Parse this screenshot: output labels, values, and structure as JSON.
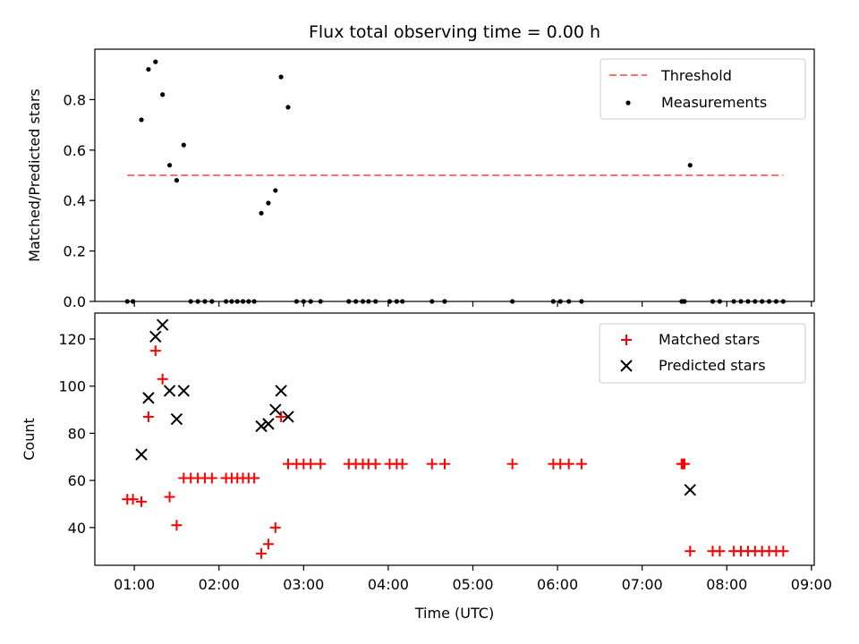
{
  "chart_data": [
    {
      "type": "scatter",
      "title": "Flux total observing time = 0.00 h",
      "xlabel": "",
      "ylabel": "Matched/Predicted stars",
      "xlim": [
        "00:32",
        "09:02"
      ],
      "ylim": [
        0,
        1.0
      ],
      "yticks": [
        0.0,
        0.2,
        0.4,
        0.6,
        0.8
      ],
      "ytick_labels": [
        "0.0",
        "0.2",
        "0.4",
        "0.6",
        "0.8"
      ],
      "grid": false,
      "legend_position": "top-right",
      "threshold": {
        "name": "Threshold",
        "value": 0.5,
        "x_start": "00:55",
        "x_end": "08:40",
        "color": "#ff7070"
      },
      "series": [
        {
          "name": "Measurements",
          "color": "#000000",
          "x": [
            "00:55",
            "00:59",
            "01:05",
            "01:10",
            "01:15",
            "01:20",
            "01:25",
            "01:30",
            "01:35",
            "01:40",
            "01:45",
            "01:50",
            "01:55",
            "02:05",
            "02:09",
            "02:13",
            "02:17",
            "02:21",
            "02:25",
            "02:30",
            "02:35",
            "02:40",
            "02:44",
            "02:49",
            "02:55",
            "03:00",
            "03:05",
            "03:12",
            "03:32",
            "03:37",
            "03:42",
            "03:46",
            "03:51",
            "04:01",
            "04:06",
            "04:10",
            "04:31",
            "04:40",
            "05:28",
            "05:57",
            "06:02",
            "06:08",
            "06:17",
            "07:28",
            "07:29",
            "07:30",
            "07:34",
            "07:50",
            "07:55",
            "08:05",
            "08:10",
            "08:15",
            "08:20",
            "08:25",
            "08:30",
            "08:35",
            "08:40"
          ],
          "y": [
            0,
            0,
            0.72,
            0.92,
            0.95,
            0.82,
            0.54,
            0.48,
            0.62,
            0,
            0,
            0,
            0,
            0,
            0,
            0,
            0,
            0,
            0,
            0.35,
            0.39,
            0.44,
            0.89,
            0.77,
            0,
            0,
            0,
            0,
            0,
            0,
            0,
            0,
            0,
            0,
            0,
            0,
            0,
            0,
            0,
            0,
            0,
            0,
            0,
            0,
            0,
            0,
            0.54,
            0,
            0,
            0,
            0,
            0,
            0,
            0,
            0,
            0,
            0
          ]
        }
      ]
    },
    {
      "type": "scatter",
      "title": "",
      "xlabel": "Time (UTC)",
      "ylabel": "Count",
      "xlim": [
        "00:32",
        "09:02"
      ],
      "ylim": [
        24,
        131
      ],
      "yticks": [
        40,
        60,
        80,
        100,
        120
      ],
      "ytick_labels": [
        "40",
        "60",
        "80",
        "100",
        "120"
      ],
      "xticks": [
        "01:00",
        "02:00",
        "03:00",
        "04:00",
        "05:00",
        "06:00",
        "07:00",
        "08:00",
        "09:00"
      ],
      "xtick_labels": [
        "01:00",
        "02:00",
        "03:00",
        "04:00",
        "05:00",
        "06:00",
        "07:00",
        "08:00",
        "09:00"
      ],
      "grid": false,
      "legend_position": "top-right",
      "series": [
        {
          "name": "Matched stars",
          "color": "#ff0000",
          "marker": "+",
          "x": [
            "00:55",
            "00:59",
            "01:05",
            "01:10",
            "01:15",
            "01:20",
            "01:25",
            "01:30",
            "01:35",
            "01:40",
            "01:45",
            "01:50",
            "01:55",
            "02:05",
            "02:09",
            "02:13",
            "02:17",
            "02:21",
            "02:25",
            "02:30",
            "02:35",
            "02:40",
            "02:44",
            "02:49",
            "02:55",
            "03:00",
            "03:05",
            "03:12",
            "03:32",
            "03:37",
            "03:42",
            "03:46",
            "03:51",
            "04:01",
            "04:06",
            "04:10",
            "04:31",
            "04:40",
            "05:28",
            "05:57",
            "06:02",
            "06:08",
            "06:17",
            "07:28",
            "07:29",
            "07:30",
            "07:34",
            "07:50",
            "07:55",
            "08:05",
            "08:10",
            "08:15",
            "08:20",
            "08:25",
            "08:30",
            "08:35",
            "08:40"
          ],
          "y": [
            52,
            52,
            51,
            87,
            115,
            103,
            53,
            41,
            61,
            61,
            61,
            61,
            61,
            61,
            61,
            61,
            61,
            61,
            61,
            29,
            33,
            40,
            87,
            67,
            67,
            67,
            67,
            67,
            67,
            67,
            67,
            67,
            67,
            67,
            67,
            67,
            67,
            67,
            67,
            67,
            67,
            67,
            67,
            67,
            67,
            67,
            30,
            30,
            30,
            30,
            30,
            30,
            30,
            30,
            30,
            30,
            30
          ]
        },
        {
          "name": "Predicted stars",
          "color": "#000000",
          "marker": "x",
          "x": [
            "01:05",
            "01:10",
            "01:15",
            "01:20",
            "01:25",
            "01:30",
            "01:35",
            "02:30",
            "02:35",
            "02:40",
            "02:44",
            "02:49",
            "07:34"
          ],
          "y": [
            71,
            95,
            121,
            126,
            98,
            86,
            98,
            83,
            84,
            90,
            98,
            87,
            56
          ]
        }
      ]
    }
  ]
}
